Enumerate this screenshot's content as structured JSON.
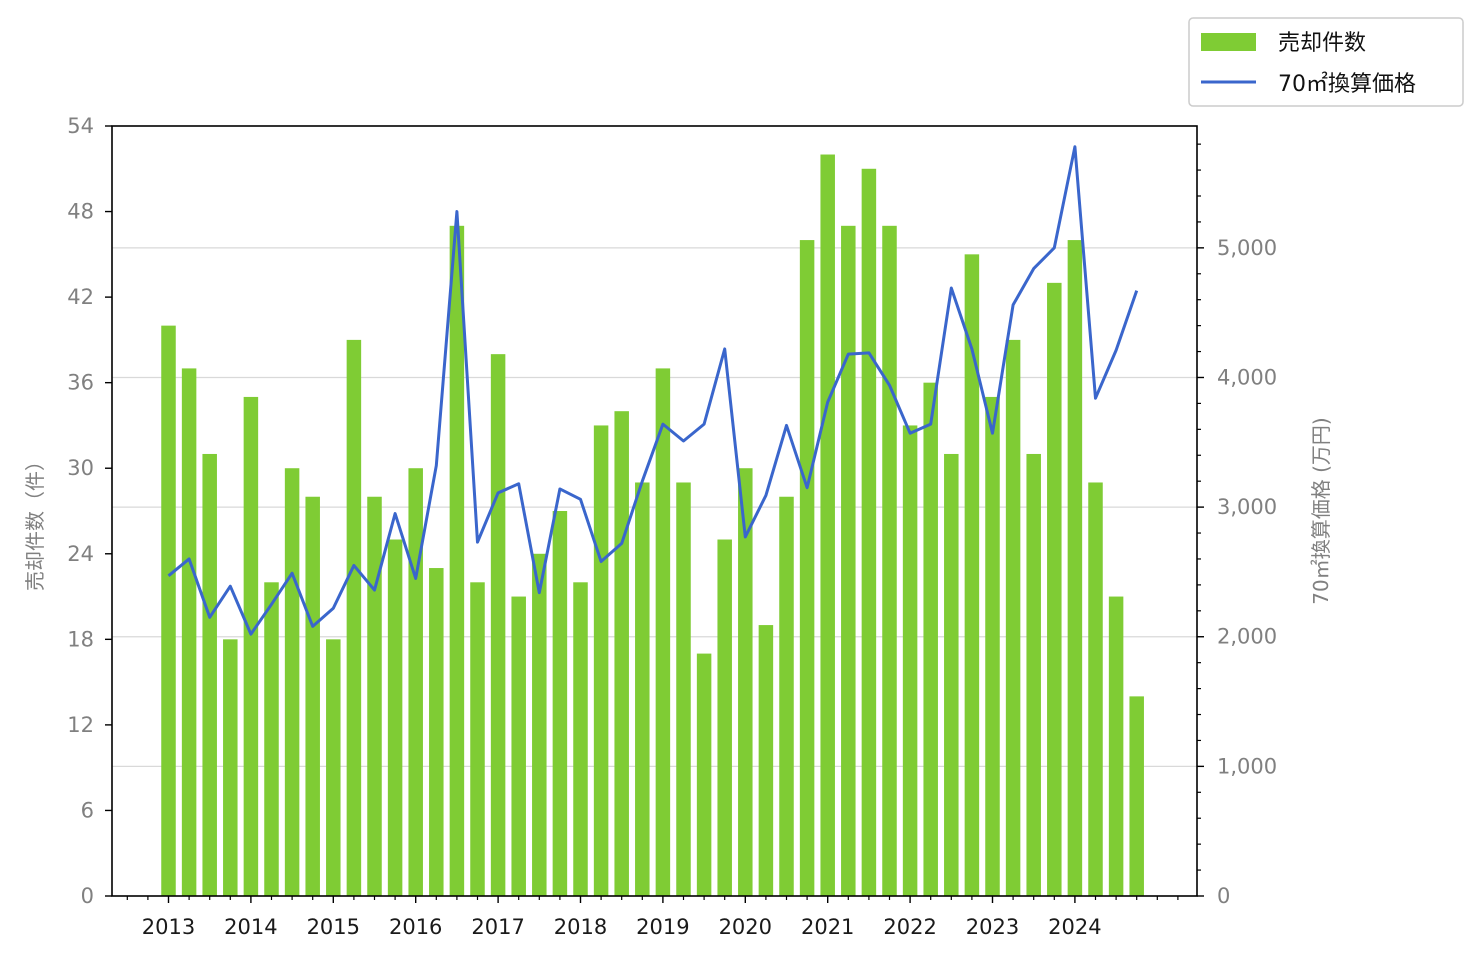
{
  "chart_data": {
    "type": "bar",
    "x_tick_labels": [
      "2013",
      "2014",
      "2015",
      "2016",
      "2017",
      "2018",
      "2019",
      "2020",
      "2021",
      "2022",
      "2023",
      "2024"
    ],
    "series": [
      {
        "name": "売却件数",
        "type": "bar",
        "axis": "left",
        "color": "#7fcc34",
        "values": [
          40,
          37,
          31,
          18,
          35,
          22,
          30,
          28,
          18,
          39,
          28,
          25,
          30,
          23,
          47,
          22,
          38,
          21,
          24,
          27,
          22,
          33,
          34,
          29,
          37,
          29,
          17,
          25,
          30,
          19,
          28,
          46,
          52,
          47,
          51,
          47,
          33,
          36,
          31,
          45,
          35,
          39,
          31,
          43,
          46,
          29,
          21,
          14
        ]
      },
      {
        "name": "70㎡換算価格",
        "type": "line",
        "axis": "right",
        "color": "#3a66cc",
        "values": [
          2470,
          2600,
          2150,
          2390,
          2020,
          2250,
          2490,
          2080,
          2220,
          2550,
          2360,
          2950,
          2450,
          3320,
          5280,
          2730,
          3110,
          3180,
          2340,
          3140,
          3060,
          2580,
          2720,
          3200,
          3640,
          3510,
          3640,
          4220,
          2770,
          3090,
          3630,
          3150,
          3810,
          4180,
          4190,
          3940,
          3570,
          3640,
          4690,
          4220,
          3570,
          4560,
          4840,
          5000,
          5780,
          3840,
          4210,
          4670
        ]
      }
    ],
    "y_left": {
      "label": "売却件数（件）",
      "range": [
        0,
        54
      ],
      "ticks": [
        "0",
        "6",
        "12",
        "18",
        "24",
        "30",
        "36",
        "42",
        "48",
        "54"
      ]
    },
    "y_right": {
      "label": "70㎡換算価格 (万円)",
      "range": [
        0,
        5940
      ],
      "ticks": [
        "0",
        "1,000",
        "2,000",
        "3,000",
        "4,000",
        "5,000"
      ]
    },
    "grid": "horizontal, right axis major ticks",
    "legend": {
      "placement": "top-right, outside plot",
      "items": [
        "売却件数",
        "70㎡換算価格"
      ]
    }
  }
}
